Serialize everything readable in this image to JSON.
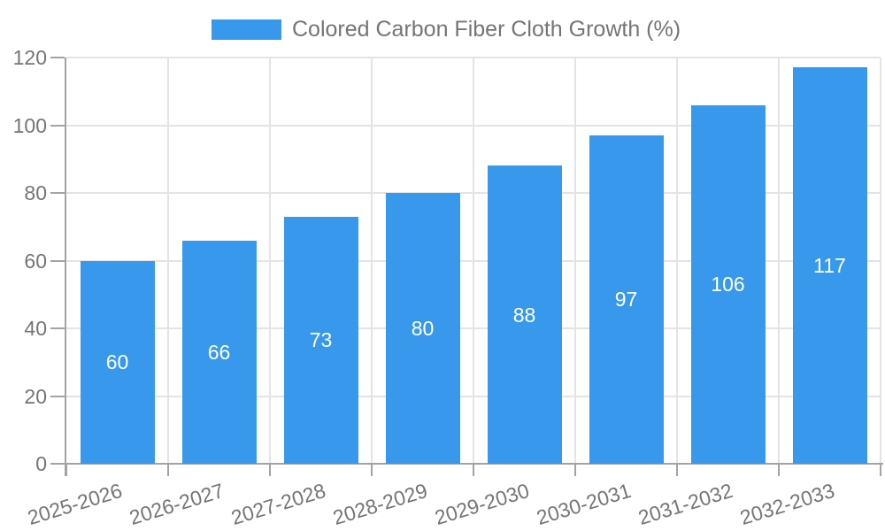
{
  "chart_data": {
    "type": "bar",
    "title": "Colored Carbon Fiber Cloth Growth (%)",
    "categories": [
      "2025-2026",
      "2026-2027",
      "2027-2028",
      "2028-2029",
      "2029-2030",
      "2030-2031",
      "2031-2032",
      "2032-2033"
    ],
    "values": [
      60,
      66,
      73,
      80,
      88,
      97,
      106,
      117
    ],
    "value_labels": [
      60,
      66,
      73,
      80,
      88,
      97,
      106,
      117
    ],
    "xlabel": "",
    "ylabel": "",
    "ylim": [
      0,
      120
    ],
    "yticks": [
      0,
      20,
      40,
      60,
      80,
      100,
      120
    ],
    "grid": true,
    "legend_position": "top",
    "x_label_rotation_deg": -17,
    "colors": {
      "bar": "#3899ec",
      "grid": "#e4e4e4",
      "axis": "#a3a3a3",
      "text": "#757575",
      "value_text": "#ffffff",
      "background": "#ffffff"
    }
  }
}
